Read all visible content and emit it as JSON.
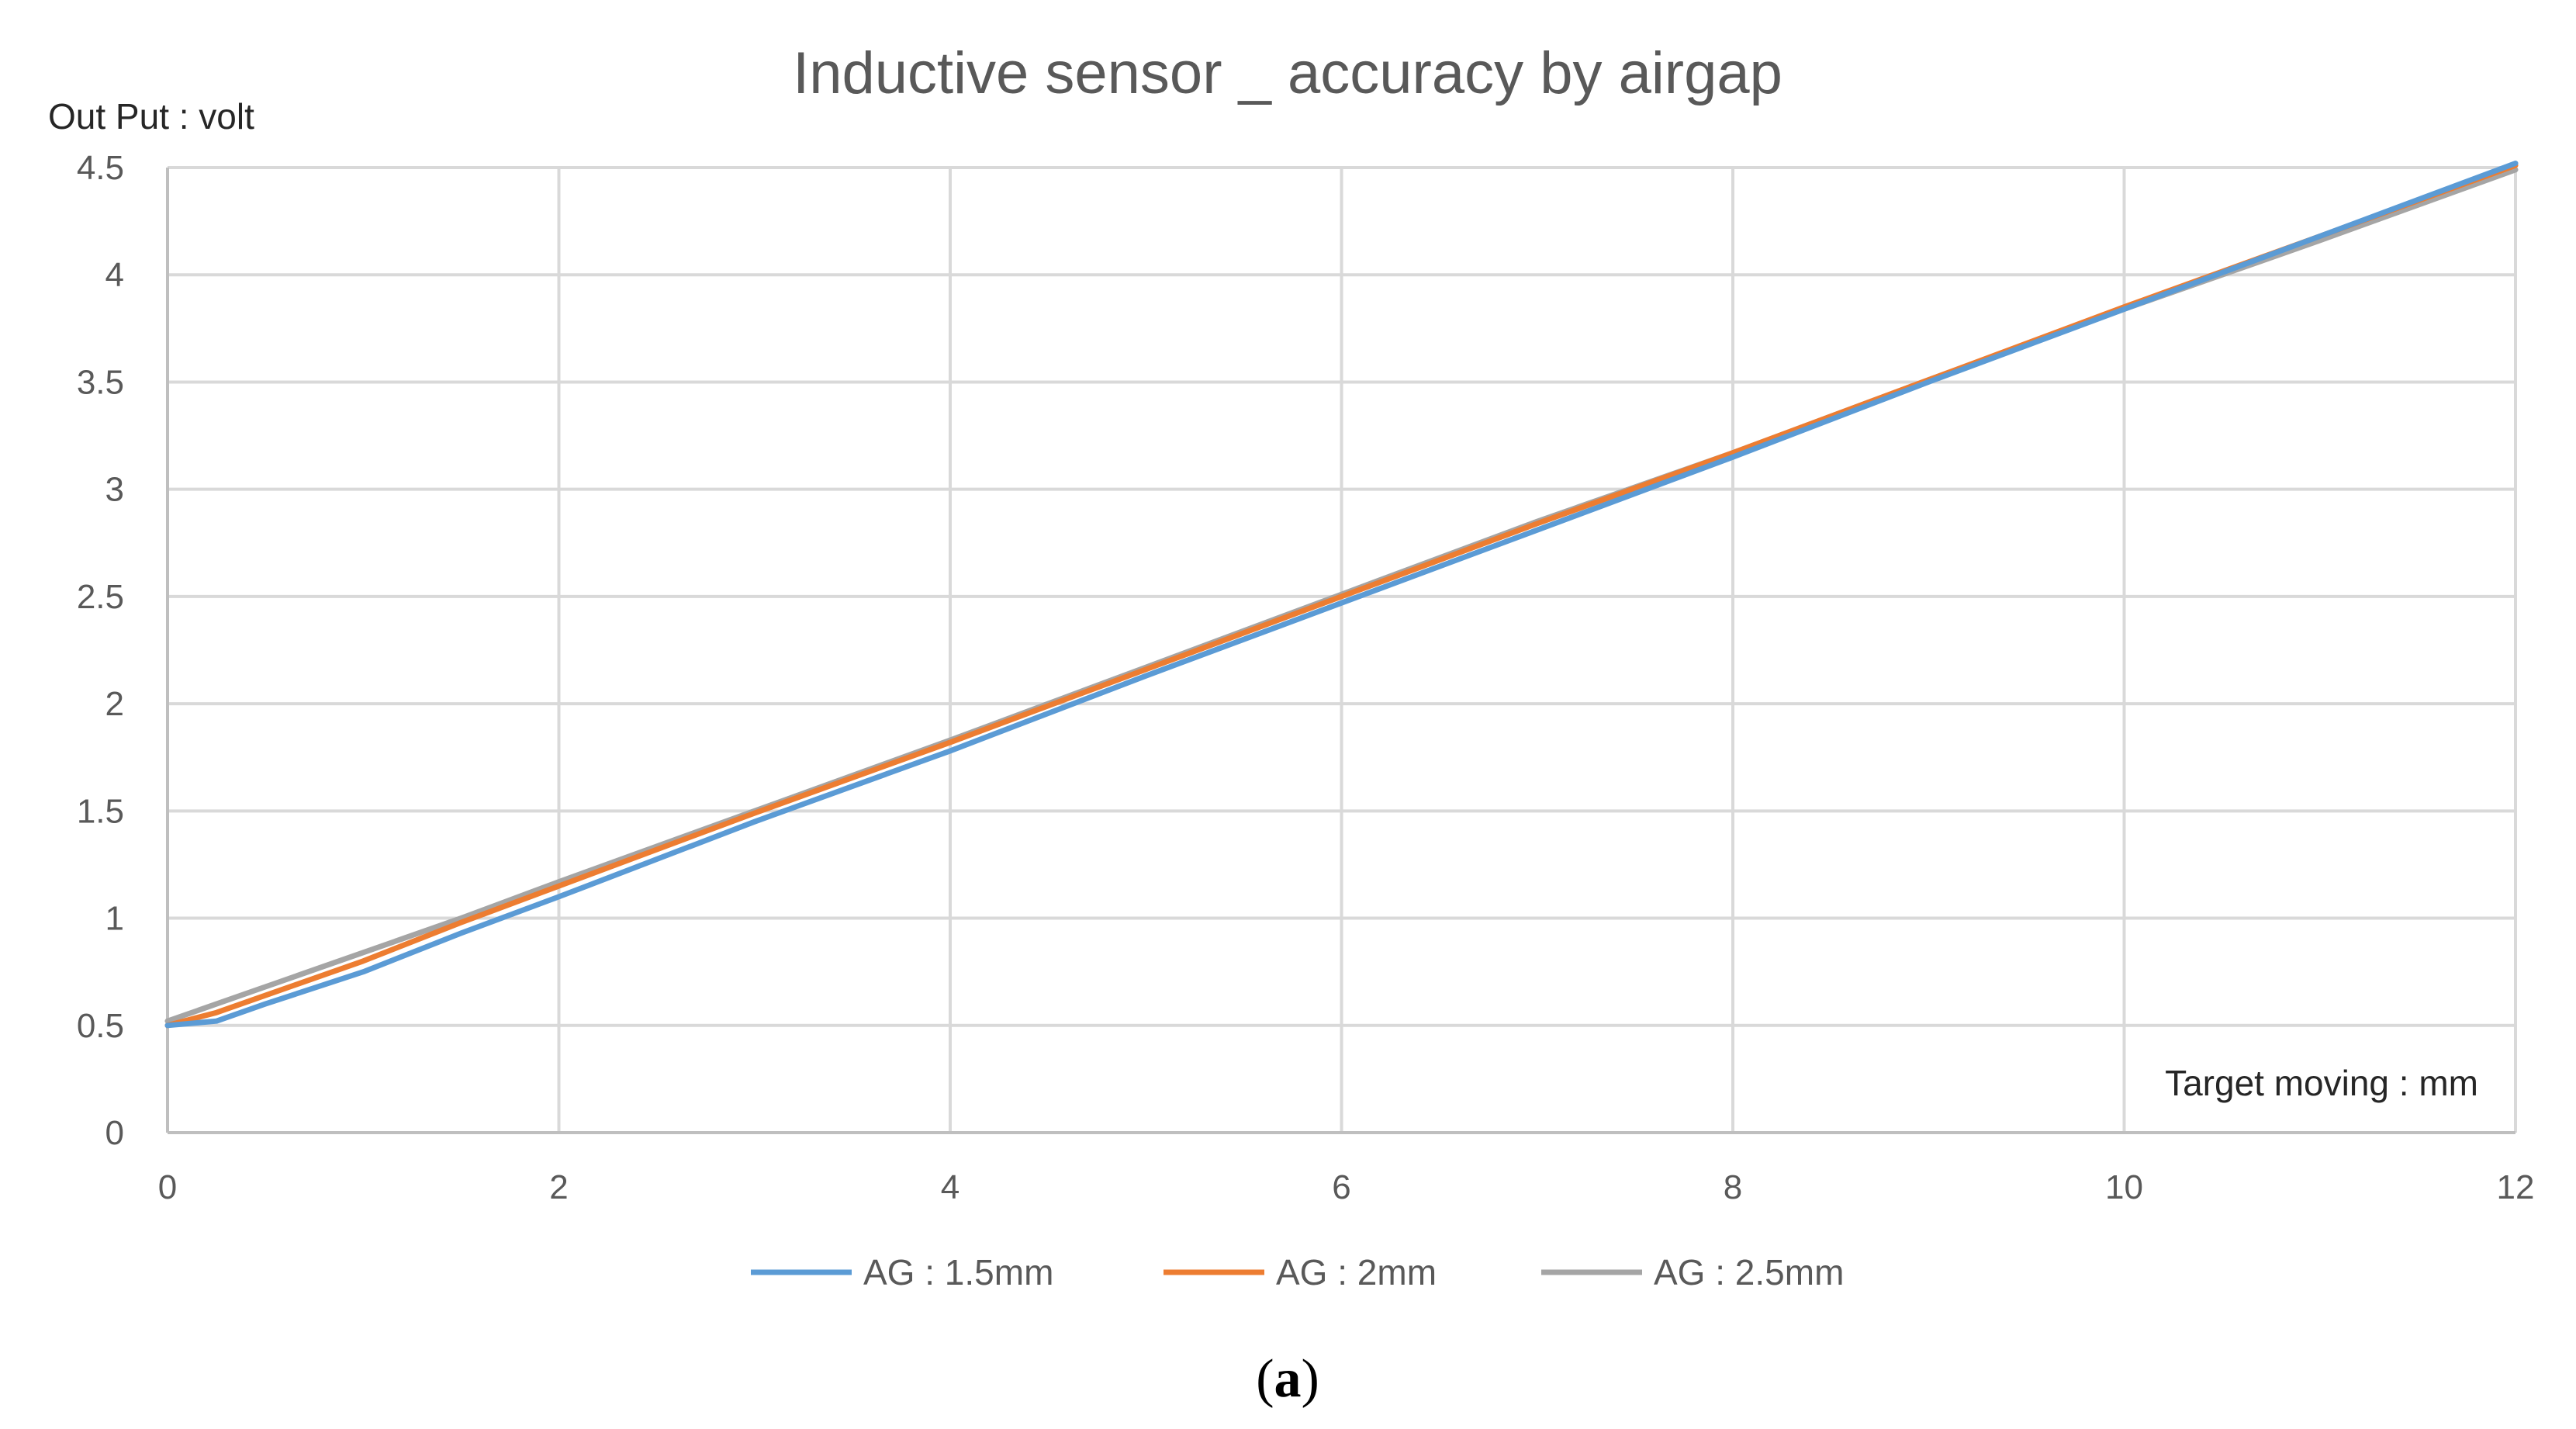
{
  "chart_data": {
    "type": "line",
    "title": "Inductive sensor _ accuracy by airgap",
    "ylabel": "Out Put :  volt",
    "xlabel": "Target moving : mm",
    "xlim": [
      0,
      12
    ],
    "ylim": [
      0,
      4.5
    ],
    "x_ticks": [
      "0",
      "2",
      "4",
      "6",
      "8",
      "10",
      "12"
    ],
    "y_ticks": [
      "0",
      "0.5",
      "1",
      "1.5",
      "2",
      "2.5",
      "3",
      "3.5",
      "4",
      "4.5"
    ],
    "grid": true,
    "legend_position": "bottom",
    "series": [
      {
        "name": "AG : 1.5mm",
        "color": "#5b9bd5",
        "x": [
          0,
          0.25,
          0.5,
          1,
          1.5,
          2,
          3,
          4,
          5,
          6,
          7,
          8,
          9,
          10,
          11,
          12
        ],
        "y": [
          0.5,
          0.52,
          0.6,
          0.75,
          0.93,
          1.1,
          1.45,
          1.78,
          2.13,
          2.47,
          2.81,
          3.15,
          3.5,
          3.84,
          4.18,
          4.52
        ]
      },
      {
        "name": "AG : 2mm",
        "color": "#ed7d31",
        "x": [
          0,
          0.25,
          0.5,
          1,
          1.5,
          2,
          3,
          4,
          5,
          6,
          7,
          8,
          9,
          10,
          11,
          12
        ],
        "y": [
          0.5,
          0.56,
          0.64,
          0.8,
          0.98,
          1.15,
          1.49,
          1.82,
          2.16,
          2.5,
          2.84,
          3.17,
          3.51,
          3.85,
          4.18,
          4.51
        ]
      },
      {
        "name": "AG : 2.5mm",
        "color": "#a5a5a5",
        "x": [
          0,
          0.25,
          0.5,
          1,
          1.5,
          2,
          3,
          4,
          5,
          6,
          7,
          8,
          9,
          10,
          11,
          12
        ],
        "y": [
          0.52,
          0.6,
          0.68,
          0.84,
          1.0,
          1.17,
          1.5,
          1.83,
          2.17,
          2.51,
          2.85,
          3.17,
          3.51,
          3.84,
          4.16,
          4.49
        ]
      }
    ]
  },
  "caption": {
    "open": "(",
    "letter": "a",
    "close": ")"
  }
}
